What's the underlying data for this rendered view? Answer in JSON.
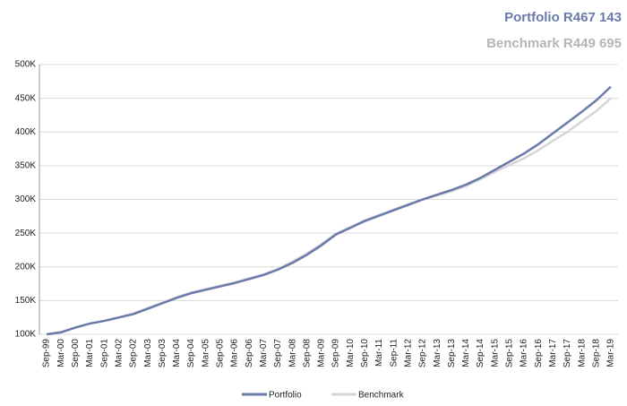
{
  "chart_data": {
    "type": "line",
    "annotations": [
      "Portfolio R467 143",
      "Benchmark R449 695"
    ],
    "categories": [
      "Sep-99",
      "Mar-00",
      "Sep-00",
      "Mar-01",
      "Sep-01",
      "Mar-02",
      "Sep-02",
      "Mar-03",
      "Sep-03",
      "Mar-04",
      "Sep-04",
      "Mar-05",
      "Sep-05",
      "Mar-06",
      "Sep-06",
      "Mar-07",
      "Sep-07",
      "Mar-08",
      "Sep-08",
      "Mar-09",
      "Sep-09",
      "Mar-10",
      "Sep-10",
      "Mar-11",
      "Sep-11",
      "Mar-12",
      "Sep-12",
      "Mar-13",
      "Sep-13",
      "Mar-14",
      "Sep-14",
      "Mar-15",
      "Sep-15",
      "Mar-16",
      "Sep-16",
      "Mar-17",
      "Sep-17",
      "Mar-18",
      "Sep-18",
      "Mar-19"
    ],
    "series": [
      {
        "name": "Portfolio",
        "color": "#6a7bab",
        "values": [
          100000,
          103000,
          110000,
          116000,
          120000,
          125000,
          130000,
          138000,
          146000,
          154000,
          161000,
          166000,
          171000,
          176000,
          182000,
          188000,
          196000,
          206000,
          218000,
          232000,
          248000,
          258000,
          268000,
          276000,
          284000,
          292000,
          300000,
          307000,
          314000,
          322000,
          332000,
          344000,
          356000,
          368000,
          382000,
          398000,
          414000,
          430000,
          447000,
          467143
        ]
      },
      {
        "name": "Benchmark",
        "color": "#d6d6d6",
        "values": [
          100000,
          103000,
          110000,
          116000,
          120000,
          125000,
          131000,
          139000,
          147000,
          155000,
          162000,
          167000,
          172000,
          177000,
          183000,
          189000,
          197000,
          208000,
          220000,
          234000,
          249000,
          259000,
          269000,
          277000,
          285000,
          293000,
          300000,
          306000,
          312000,
          320000,
          330000,
          341000,
          351000,
          361000,
          373000,
          387000,
          400000,
          416000,
          431000,
          449695
        ]
      }
    ],
    "ylim": [
      100000,
      500000
    ],
    "yticks": [
      {
        "value": 100000,
        "label": "100K"
      },
      {
        "value": 150000,
        "label": "150K"
      },
      {
        "value": 200000,
        "label": "200K"
      },
      {
        "value": 250000,
        "label": "250K"
      },
      {
        "value": 300000,
        "label": "300K"
      },
      {
        "value": 350000,
        "label": "350K"
      },
      {
        "value": 400000,
        "label": "400K"
      },
      {
        "value": 450000,
        "label": "450K"
      },
      {
        "value": 500000,
        "label": "500K"
      }
    ],
    "grid": true,
    "legend": "bottom"
  }
}
